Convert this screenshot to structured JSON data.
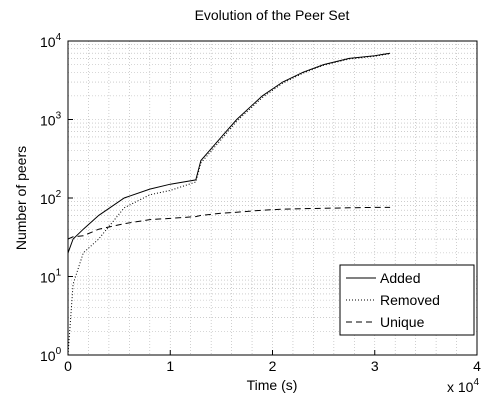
{
  "chart_data": {
    "type": "line",
    "title": "Evolution of the Peer Set",
    "x_label": "Time (s)",
    "y_label": "Number of peers",
    "x_multiplier": "x 10^4",
    "x": [
      0,
      500,
      1500,
      3000,
      5500,
      8000,
      10000,
      12500,
      13000,
      15000,
      16500,
      19000,
      21000,
      23000,
      25000,
      27500,
      30000,
      31500
    ],
    "series": [
      {
        "name": "Added",
        "color": "#000000",
        "dash": "solid",
        "values": [
          20,
          30,
          40,
          60,
          100,
          130,
          150,
          170,
          300,
          600,
          1000,
          2000,
          3000,
          4000,
          5000,
          6000,
          6500,
          7000
        ]
      },
      {
        "name": "Removed",
        "color": "#000000",
        "dash": "dotted",
        "values": [
          1,
          8,
          20,
          30,
          75,
          110,
          125,
          160,
          280,
          560,
          950,
          1900,
          2900,
          3900,
          4900,
          5900,
          6400,
          6900
        ]
      },
      {
        "name": "Unique",
        "color": "#000000",
        "dash": "dashed",
        "values": [
          30,
          32,
          33,
          40,
          47,
          53,
          55,
          58,
          60,
          64,
          66,
          70,
          72,
          73,
          74,
          75,
          76,
          76
        ]
      }
    ],
    "xlim": [
      0,
      40000
    ],
    "xticks": [
      0,
      {
        "value": 10000,
        "label": "1"
      },
      {
        "value": 20000,
        "label": "2"
      },
      {
        "value": 30000,
        "label": "3"
      },
      {
        "value": 40000,
        "label": "4"
      }
    ],
    "ylim": [
      1,
      10000
    ],
    "yticks": [
      {
        "value": 1,
        "label": "10^0"
      },
      {
        "value": 10,
        "label": "10^1"
      },
      {
        "value": 100,
        "label": "10^2"
      },
      {
        "value": 1000,
        "label": "10^3"
      },
      {
        "value": 10000,
        "label": "10^4"
      }
    ],
    "y_log": true,
    "grid": true,
    "legend": "lower right"
  }
}
